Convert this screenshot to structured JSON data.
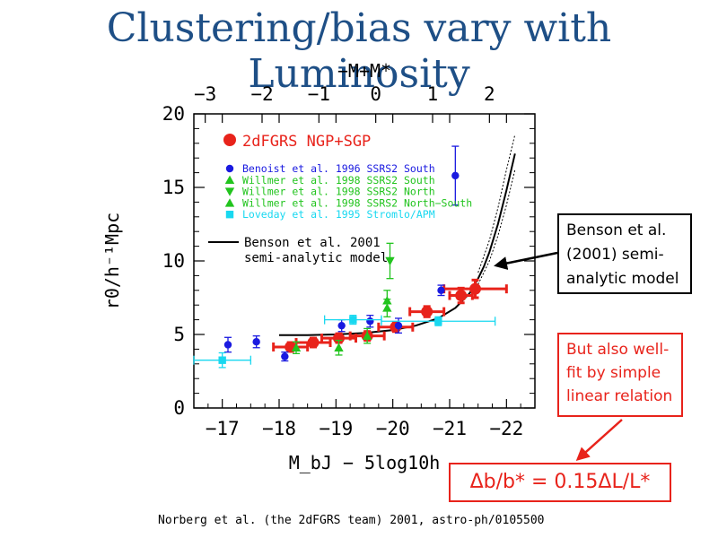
{
  "slide": {
    "title": "Clustering/bias vary with Luminosity",
    "benson_callout": "Benson et al. (2001) semi-analytic model",
    "linear_callout": "But also well-fit by simple linear relation",
    "formula": "Δb/b* = 0.15ΔL/L*",
    "citation": "Norberg et al. (the 2dFGRS team) 2001, astro-ph/0105500"
  },
  "colors": {
    "title": "#1e4f86",
    "red": "#e8231b",
    "blue": "#1a1ae0",
    "green": "#22c41e",
    "cyan": "#18d8f0",
    "black": "#000000"
  },
  "chart_data": {
    "type": "scatter",
    "xlabel": "M_bJ − 5log10h",
    "ylabel": "r0/h⁻¹Mpc",
    "top_xlabel": "−M+M*",
    "xlim": [
      -16.5,
      -22.5
    ],
    "ylim": [
      0,
      20
    ],
    "x_ticks": [
      "−17",
      "−18",
      "−19",
      "−20",
      "−21",
      "−22"
    ],
    "top_ticks": [
      "−3",
      "−2",
      "−1",
      "0",
      "1",
      "2"
    ],
    "y_ticks": [
      "0",
      "5",
      "10",
      "15",
      "20"
    ],
    "legend_main": "2dFGRS NGP+SGP",
    "legend_entries": [
      {
        "label": "Benoist et al. 1996 SSRS2 South",
        "color": "#1a1ae0",
        "marker": "circle"
      },
      {
        "label": "Willmer et al. 1998 SSRS2 South",
        "color": "#22c41e",
        "marker": "triangle-up"
      },
      {
        "label": "Willmer et al. 1998 SSRS2 North",
        "color": "#22c41e",
        "marker": "triangle-down"
      },
      {
        "label": "Willmer et al. 1998 SSRS2 North−South",
        "color": "#22c41e",
        "marker": "triangle-up"
      },
      {
        "label": "Loveday et al. 1995 Stromlo/APM",
        "color": "#18d8f0",
        "marker": "square"
      }
    ],
    "model_legend": [
      "Benson et al. 2001",
      "semi-analytic model"
    ],
    "series": [
      {
        "name": "2dFGRS NGP+SGP",
        "color": "#e8231b",
        "marker": "circle",
        "points": [
          {
            "x": -18.2,
            "y": 4.15,
            "xerr": 0.3,
            "yerr": 0.3
          },
          {
            "x": -18.6,
            "y": 4.45,
            "xerr": 0.3,
            "yerr": 0.3
          },
          {
            "x": -19.05,
            "y": 4.75,
            "xerr": 0.3,
            "yerr": 0.3
          },
          {
            "x": -19.55,
            "y": 4.9,
            "xerr": 0.3,
            "yerr": 0.3
          },
          {
            "x": -20.05,
            "y": 5.5,
            "xerr": 0.3,
            "yerr": 0.3
          },
          {
            "x": -20.6,
            "y": 6.55,
            "xerr": 0.3,
            "yerr": 0.35
          },
          {
            "x": -21.2,
            "y": 7.65,
            "xerr": 0.2,
            "yerr": 0.5
          },
          {
            "x": -21.45,
            "y": 8.1,
            "xerr": 0.55,
            "yerr": 0.6
          }
        ]
      },
      {
        "name": "Benoist et al. 1996 SSRS2 South",
        "color": "#1a1ae0",
        "marker": "circle",
        "points": [
          {
            "x": -17.1,
            "y": 4.3,
            "yerr": 0.5
          },
          {
            "x": -17.6,
            "y": 4.5,
            "yerr": 0.4
          },
          {
            "x": -18.1,
            "y": 3.5,
            "yerr": 0.3
          },
          {
            "x": -19.1,
            "y": 5.6,
            "yerr": 0.4
          },
          {
            "x": -19.6,
            "y": 5.9,
            "yerr": 0.4
          },
          {
            "x": -20.1,
            "y": 5.6,
            "yerr": 0.5
          },
          {
            "x": -20.85,
            "y": 8.0,
            "yerr": 0.35
          },
          {
            "x": -21.1,
            "y": 15.8,
            "yerr": 2.0
          }
        ]
      },
      {
        "name": "Willmer et al. 1998 SSRS2 South",
        "color": "#22c41e",
        "marker": "triangle-up",
        "points": [
          {
            "x": -18.3,
            "y": 4.1,
            "yerr": 0.4
          },
          {
            "x": -19.05,
            "y": 4.1,
            "yerr": 0.5
          },
          {
            "x": -19.55,
            "y": 4.9,
            "yerr": 0.5
          }
        ]
      },
      {
        "name": "Willmer et al. 1998 SSRS2 North",
        "color": "#22c41e",
        "marker": "triangle-down",
        "points": [
          {
            "x": -19.95,
            "y": 10.0,
            "yerr": 1.2
          }
        ]
      },
      {
        "name": "Willmer et al. 1998 SSRS2 North−South",
        "color": "#22c41e",
        "marker": "triangle-up",
        "points": [
          {
            "x": -19.9,
            "y": 7.3,
            "yerr": 0.7
          },
          {
            "x": -19.9,
            "y": 6.8,
            "yerr": 0.6
          }
        ]
      },
      {
        "name": "Loveday et al. 1995 Stromlo/APM",
        "color": "#18d8f0",
        "marker": "square",
        "points": [
          {
            "x": -17.0,
            "y": 3.25,
            "xerr": 0.5,
            "yerr": 0.5
          },
          {
            "x": -19.3,
            "y": 6.0,
            "xerr": 0.5,
            "yerr": 0.3
          },
          {
            "x": -20.8,
            "y": 5.9,
            "xerr": 1.0,
            "yerr": 0.3
          }
        ]
      }
    ],
    "model_curve": {
      "name": "Benson et al. 2001 semi-analytic model",
      "points": [
        [
          -18.0,
          4.95
        ],
        [
          -18.5,
          4.95
        ],
        [
          -19.0,
          5.0
        ],
        [
          -19.5,
          5.1
        ],
        [
          -20.0,
          5.3
        ],
        [
          -20.4,
          5.6
        ],
        [
          -20.8,
          6.1
        ],
        [
          -21.1,
          6.8
        ],
        [
          -21.35,
          7.8
        ],
        [
          -21.5,
          8.8
        ],
        [
          -21.6,
          9.6
        ],
        [
          -21.7,
          10.6
        ],
        [
          -21.85,
          12.5
        ],
        [
          -22.0,
          14.8
        ],
        [
          -22.15,
          17.3
        ]
      ],
      "upper": [
        [
          -21.5,
          9.2
        ],
        [
          -21.7,
          11.4
        ],
        [
          -21.85,
          13.6
        ],
        [
          -22.0,
          16.2
        ],
        [
          -22.15,
          18.6
        ]
      ],
      "lower": [
        [
          -21.5,
          8.4
        ],
        [
          -21.7,
          10.0
        ],
        [
          -21.85,
          11.7
        ],
        [
          -22.0,
          13.8
        ],
        [
          -22.15,
          16.2
        ]
      ]
    }
  }
}
